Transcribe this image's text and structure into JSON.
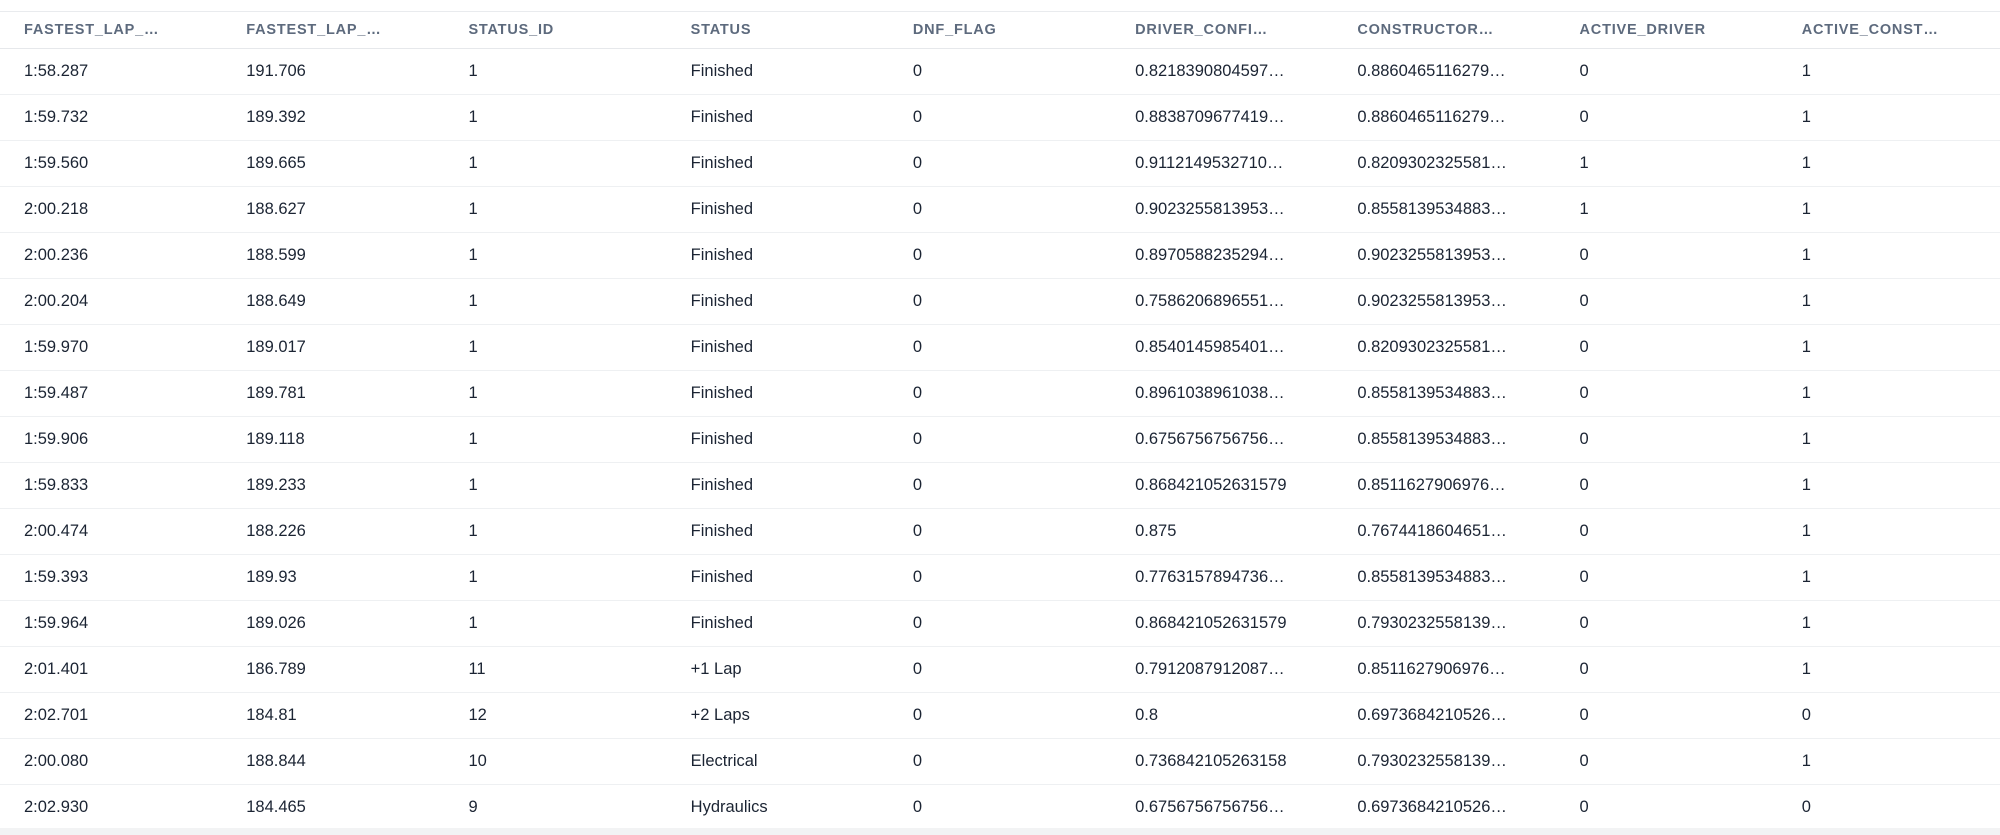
{
  "colors": {
    "header_text": "#5d6a7d",
    "body_text": "#1b2433",
    "row_divider": "#eef0f2",
    "scrollbar_track": "#f2f3f4",
    "background": "#ffffff"
  },
  "table": {
    "columns": [
      "FASTEST_LAP_…",
      "FASTEST_LAP_…",
      "STATUS_ID",
      "STATUS",
      "DNF_FLAG",
      "DRIVER_CONFI…",
      "CONSTRUCTOR…",
      "ACTIVE_DRIVER",
      "ACTIVE_CONST…"
    ],
    "rows": [
      [
        "1:58.287",
        "191.706",
        "1",
        "Finished",
        "0",
        "0.8218390804597…",
        "0.8860465116279…",
        "0",
        "1"
      ],
      [
        "1:59.732",
        "189.392",
        "1",
        "Finished",
        "0",
        "0.8838709677419…",
        "0.8860465116279…",
        "0",
        "1"
      ],
      [
        "1:59.560",
        "189.665",
        "1",
        "Finished",
        "0",
        "0.9112149532710…",
        "0.8209302325581…",
        "1",
        "1"
      ],
      [
        "2:00.218",
        "188.627",
        "1",
        "Finished",
        "0",
        "0.9023255813953…",
        "0.8558139534883…",
        "1",
        "1"
      ],
      [
        "2:00.236",
        "188.599",
        "1",
        "Finished",
        "0",
        "0.8970588235294…",
        "0.9023255813953…",
        "0",
        "1"
      ],
      [
        "2:00.204",
        "188.649",
        "1",
        "Finished",
        "0",
        "0.7586206896551…",
        "0.9023255813953…",
        "0",
        "1"
      ],
      [
        "1:59.970",
        "189.017",
        "1",
        "Finished",
        "0",
        "0.8540145985401…",
        "0.8209302325581…",
        "0",
        "1"
      ],
      [
        "1:59.487",
        "189.781",
        "1",
        "Finished",
        "0",
        "0.8961038961038…",
        "0.8558139534883…",
        "0",
        "1"
      ],
      [
        "1:59.906",
        "189.118",
        "1",
        "Finished",
        "0",
        "0.6756756756756…",
        "0.8558139534883…",
        "0",
        "1"
      ],
      [
        "1:59.833",
        "189.233",
        "1",
        "Finished",
        "0",
        "0.868421052631579",
        "0.8511627906976…",
        "0",
        "1"
      ],
      [
        "2:00.474",
        "188.226",
        "1",
        "Finished",
        "0",
        "0.875",
        "0.7674418604651…",
        "0",
        "1"
      ],
      [
        "1:59.393",
        "189.93",
        "1",
        "Finished",
        "0",
        "0.7763157894736…",
        "0.8558139534883…",
        "0",
        "1"
      ],
      [
        "1:59.964",
        "189.026",
        "1",
        "Finished",
        "0",
        "0.868421052631579",
        "0.7930232558139…",
        "0",
        "1"
      ],
      [
        "2:01.401",
        "186.789",
        "11",
        "+1 Lap",
        "0",
        "0.7912087912087…",
        "0.8511627906976…",
        "0",
        "1"
      ],
      [
        "2:02.701",
        "184.81",
        "12",
        "+2 Laps",
        "0",
        "0.8",
        "0.6973684210526…",
        "0",
        "0"
      ],
      [
        "2:00.080",
        "188.844",
        "10",
        "Electrical",
        "0",
        "0.736842105263158",
        "0.7930232558139…",
        "0",
        "1"
      ],
      [
        "2:02.930",
        "184.465",
        "9",
        "Hydraulics",
        "0",
        "0.6756756756756…",
        "0.6973684210526…",
        "0",
        "0"
      ]
    ]
  }
}
